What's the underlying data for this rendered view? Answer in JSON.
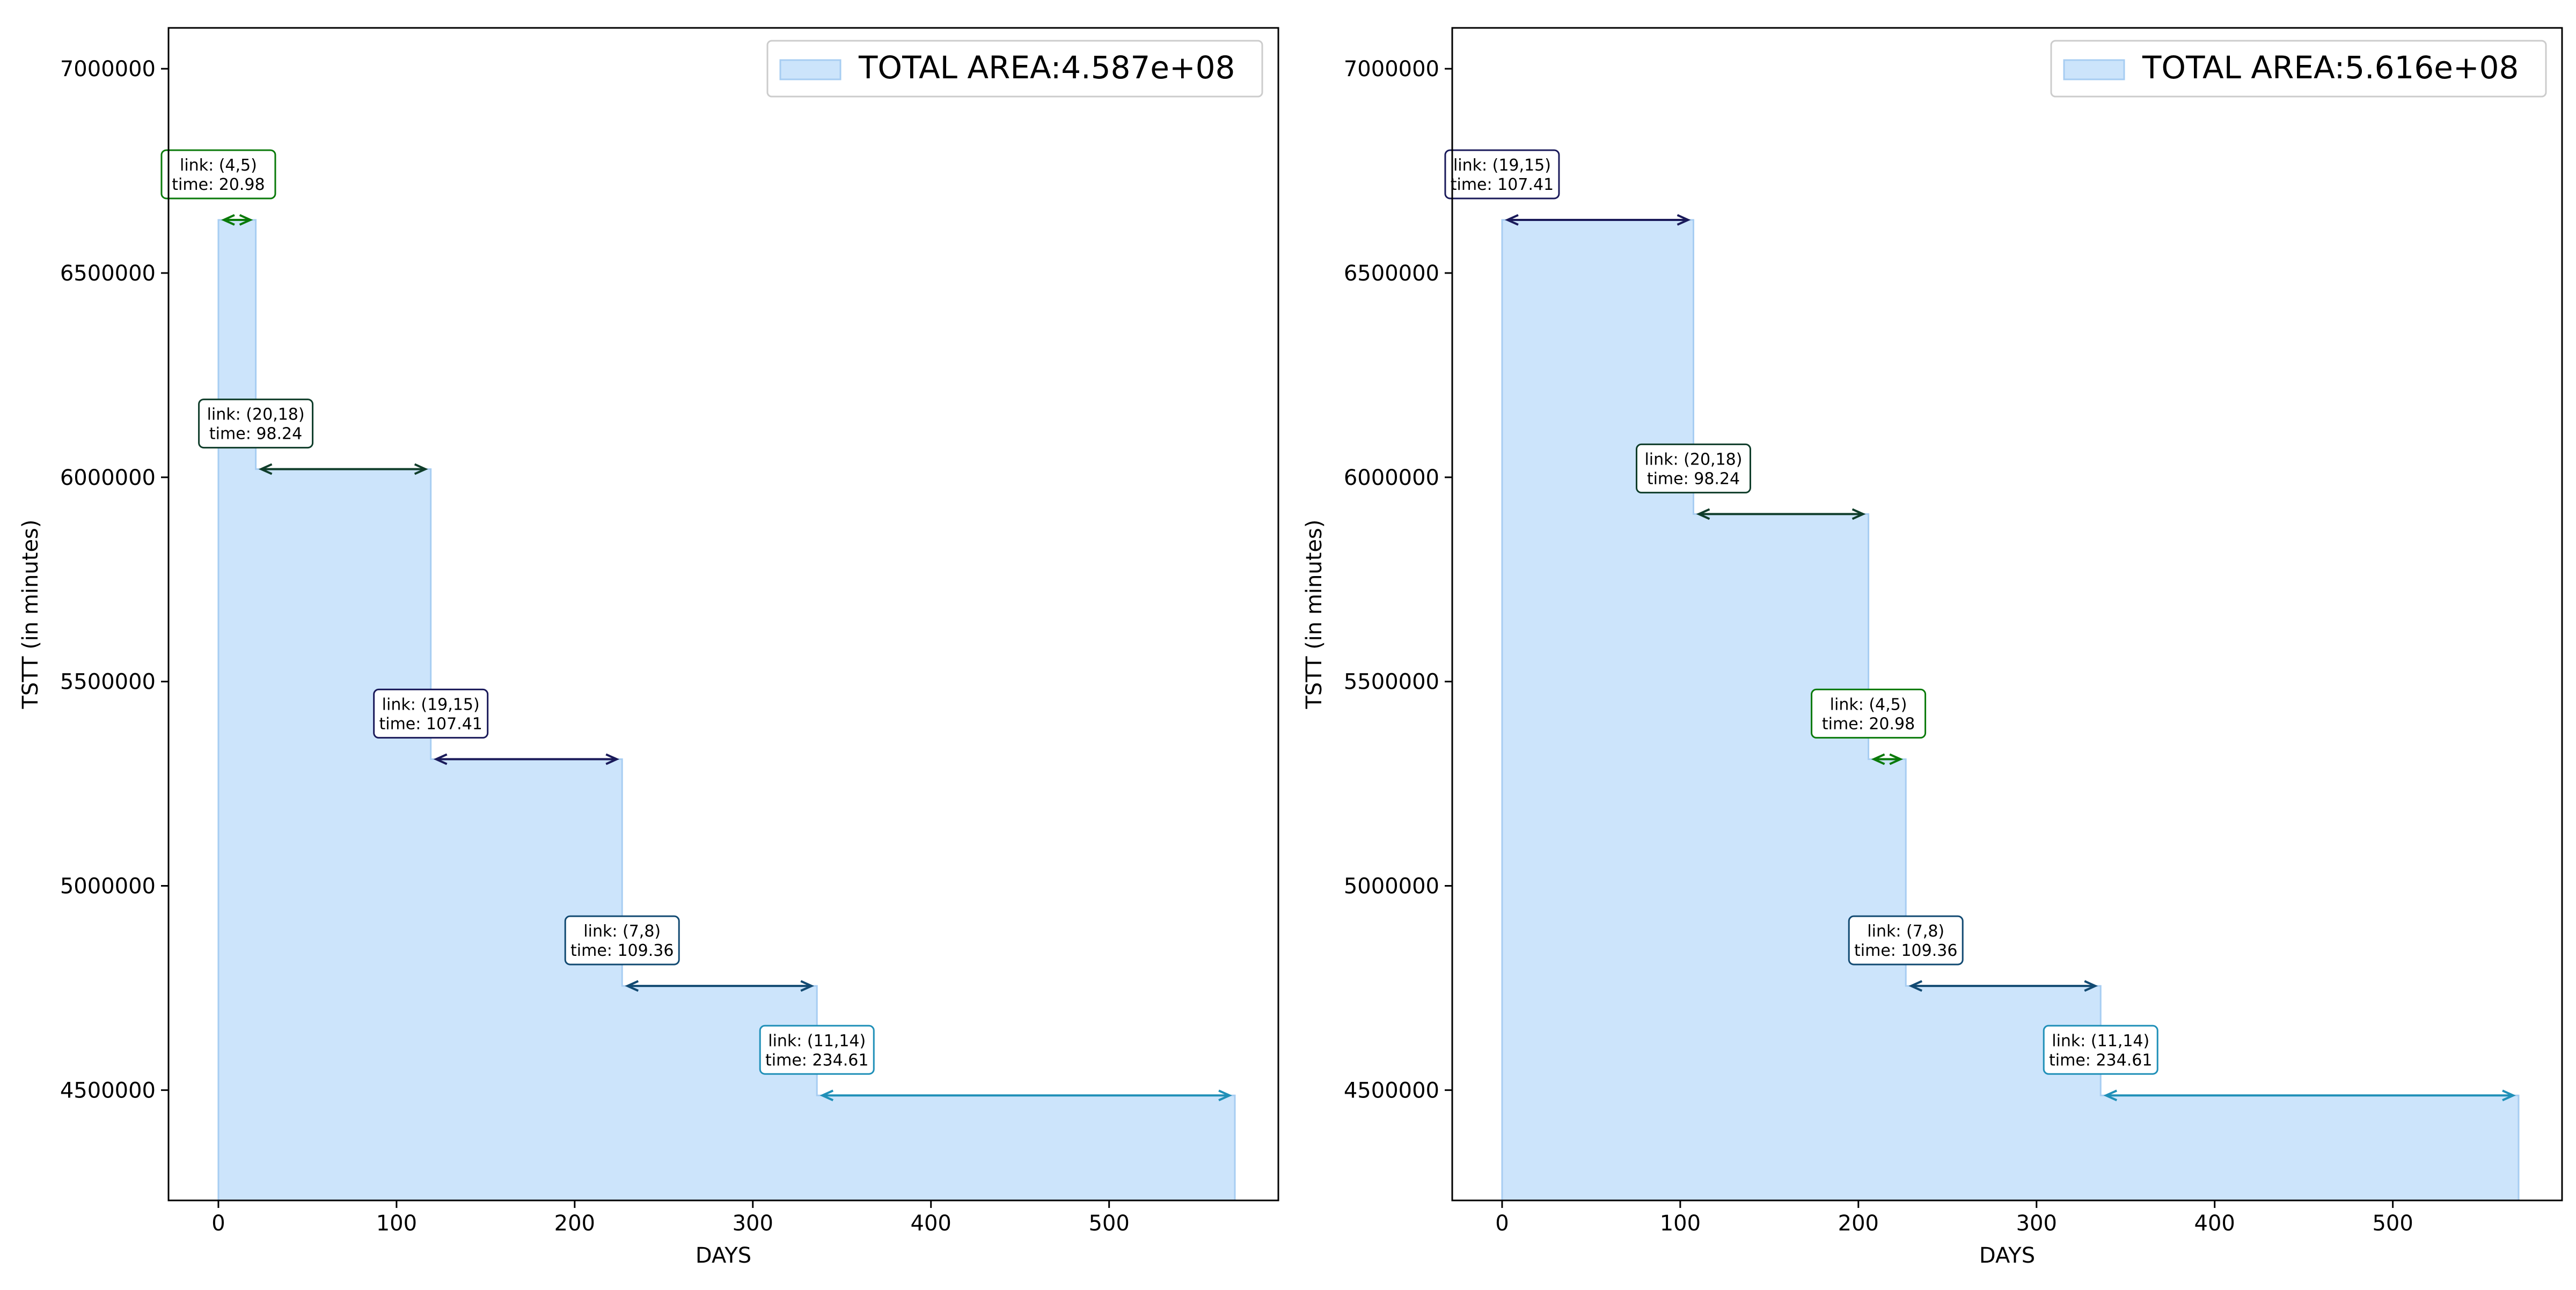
{
  "chart_data": [
    {
      "type": "area",
      "xlabel": "DAYS",
      "ylabel": "TSTT (in minutes)",
      "xlim": [
        -28,
        595
      ],
      "ylim": [
        4230000,
        7100000
      ],
      "x_ticks": [
        0,
        100,
        200,
        300,
        400,
        500
      ],
      "y_ticks": [
        4500000,
        5000000,
        5500000,
        6000000,
        6500000,
        7000000
      ],
      "legend": {
        "label": "TOTAL AREA:4.587e+08",
        "placement": "top-right"
      },
      "steps": [
        {
          "start": 0,
          "end": 20.98,
          "tstt": 6630000,
          "link": "link: (4,5)",
          "time": "time: 20.98",
          "color": "#0a7a0a"
        },
        {
          "start": 20.98,
          "end": 119.22,
          "tstt": 6020000,
          "link": "link: (20,18)",
          "time": "time: 98.24",
          "color": "#0f3d2a"
        },
        {
          "start": 119.22,
          "end": 226.63,
          "tstt": 5310000,
          "link": "link: (19,15)",
          "time": "time: 107.41",
          "color": "#1a1a5a"
        },
        {
          "start": 226.63,
          "end": 335.99,
          "tstt": 4755000,
          "link": "link: (7,8)",
          "time": "time: 109.36",
          "color": "#124a72"
        },
        {
          "start": 335.99,
          "end": 570.6,
          "tstt": 4487000,
          "link": "link: (11,14)",
          "time": "time: 234.61",
          "color": "#2090b8"
        }
      ]
    },
    {
      "type": "area",
      "xlabel": "DAYS",
      "ylabel": "TSTT (in minutes)",
      "xlim": [
        -28,
        595
      ],
      "ylim": [
        4230000,
        7100000
      ],
      "x_ticks": [
        0,
        100,
        200,
        300,
        400,
        500
      ],
      "y_ticks": [
        4500000,
        5000000,
        5500000,
        6000000,
        6500000,
        7000000
      ],
      "legend": {
        "label": "TOTAL AREA:5.616e+08",
        "placement": "top-right"
      },
      "steps": [
        {
          "start": 0,
          "end": 107.41,
          "tstt": 6630000,
          "link": "link: (19,15)",
          "time": "time: 107.41",
          "color": "#1a1a5a"
        },
        {
          "start": 107.41,
          "end": 205.65,
          "tstt": 5910000,
          "link": "link: (20,18)",
          "time": "time: 98.24",
          "color": "#0f3d2a"
        },
        {
          "start": 205.65,
          "end": 226.63,
          "tstt": 5310000,
          "link": "link: (4,5)",
          "time": "time: 20.98",
          "color": "#0a7a0a"
        },
        {
          "start": 226.63,
          "end": 335.99,
          "tstt": 4755000,
          "link": "link: (7,8)",
          "time": "time: 109.36",
          "color": "#124a72"
        },
        {
          "start": 335.99,
          "end": 570.6,
          "tstt": 4487000,
          "link": "link: (11,14)",
          "time": "time: 234.61",
          "color": "#2090b8"
        }
      ]
    }
  ],
  "style": {
    "fill_color": "#cce4fb",
    "edge_color": "#a7cdf2"
  }
}
